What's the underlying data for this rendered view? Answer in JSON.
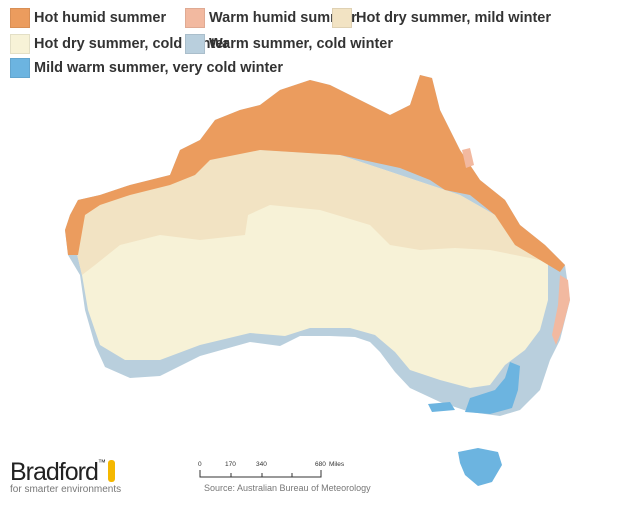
{
  "legend": [
    {
      "label": "Hot humid summer",
      "color": "#eb9c5e"
    },
    {
      "label": "Warm humid summer",
      "color": "#f2b9a0"
    },
    {
      "label": "Hot dry summer, mild winter",
      "color": "#f2e3c3"
    },
    {
      "label": "Hot dry summer, cold winter",
      "color": "#f7f2d7"
    },
    {
      "label": "Warm summer, cold winter",
      "color": "#b9cfdd"
    },
    {
      "label": "Mild warm summer, very cold winter",
      "color": "#6cb4e0"
    }
  ],
  "logo": {
    "name": "Bradford",
    "tm": "™",
    "tagline": "for smarter environments",
    "accent": "#f5b800"
  },
  "scale": {
    "ticks": [
      "0",
      "170",
      "340",
      "680"
    ],
    "unit": "Miles"
  },
  "source": "Source: Australian Bureau of Meteorology"
}
